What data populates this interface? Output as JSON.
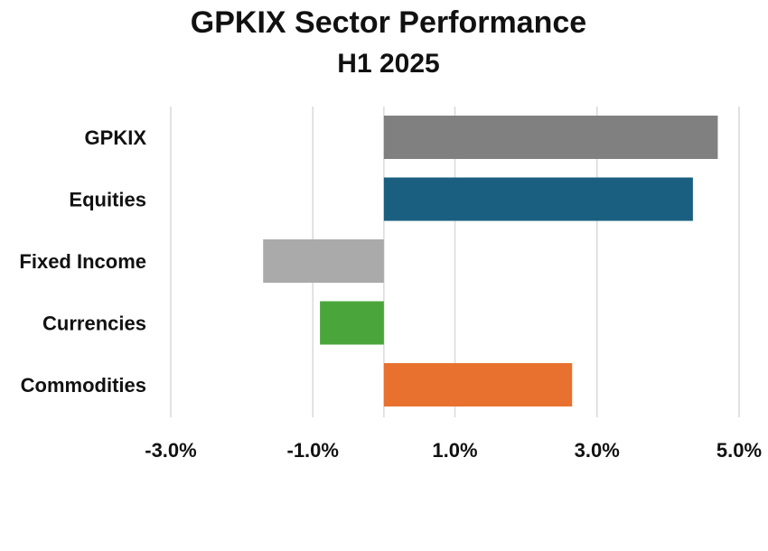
{
  "chart_data": {
    "type": "bar",
    "orientation": "horizontal",
    "title": "GPKIX Sector Performance",
    "subtitle": "H1 2025",
    "categories": [
      "GPKIX",
      "Equities",
      "Fixed Income",
      "Currencies",
      "Commodities"
    ],
    "values": [
      4.7,
      4.35,
      -1.7,
      -0.9,
      2.65
    ],
    "colors": [
      "#808080",
      "#1a5f80",
      "#aaaaaa",
      "#4aa63a",
      "#e87130"
    ],
    "xlim": [
      -3.0,
      5.0
    ],
    "xticks": [
      -3.0,
      -1.0,
      1.0,
      3.0,
      5.0
    ],
    "tick_labels": [
      "-3.0%",
      "-1.0%",
      "1.0%",
      "3.0%",
      "5.0%"
    ],
    "xlabel": "",
    "ylabel": "",
    "grid": "vertical",
    "legend": "none"
  }
}
